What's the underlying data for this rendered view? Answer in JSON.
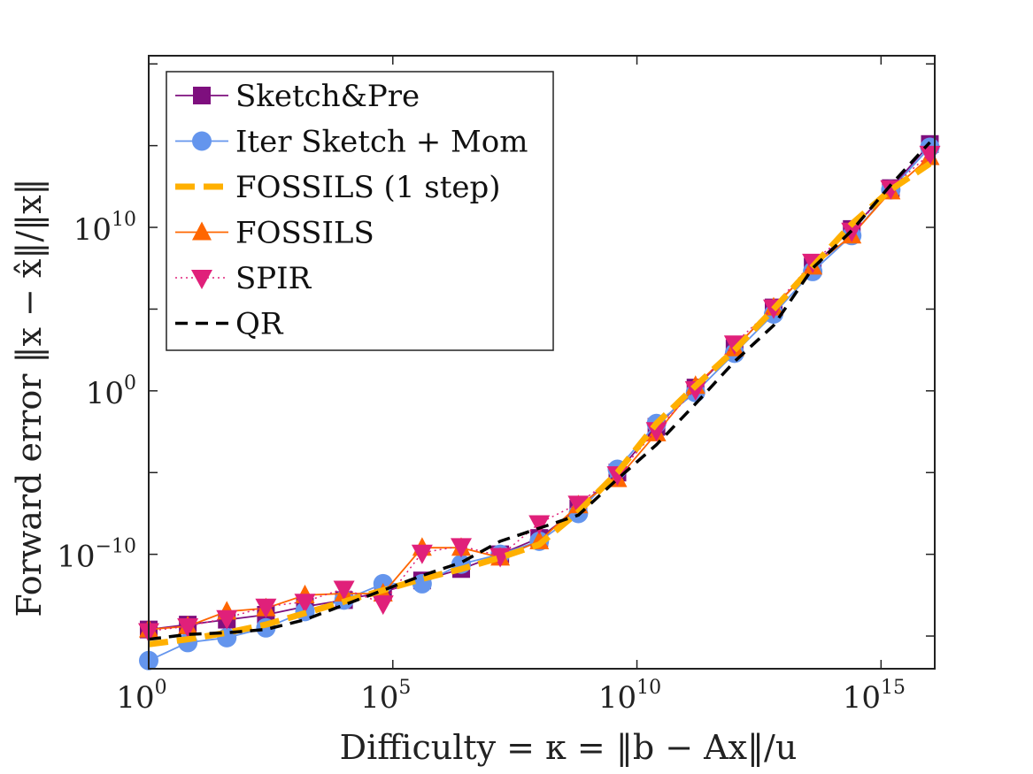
{
  "chart_data": {
    "type": "line",
    "x_scale": "log10",
    "y_scale": "log10",
    "xlabel": "Difficulty = κ = ‖b − Ax‖/u",
    "ylabel": "Forward error ‖x − x̂‖/‖x‖",
    "xlim_exp": [
      0,
      16.1
    ],
    "ylim_exp": [
      -17,
      20.5
    ],
    "x_ticks": [
      {
        "exp": 0,
        "base": "10",
        "sup": "0"
      },
      {
        "exp": 5,
        "base": "10",
        "sup": "5"
      },
      {
        "exp": 10,
        "base": "10",
        "sup": "10"
      },
      {
        "exp": 15,
        "base": "10",
        "sup": "15"
      }
    ],
    "y_ticks": [
      {
        "exp": -10,
        "base": "10",
        "sup": "−10"
      },
      {
        "exp": 0,
        "base": "10",
        "sup": "0"
      },
      {
        "exp": 10,
        "base": "10",
        "sup": "10"
      }
    ],
    "y_minor_ticks": [
      -15,
      -5,
      5,
      15,
      20
    ],
    "legend_position": "top-left",
    "series": [
      {
        "name": "Sketch&Pre",
        "color": "#7e0f7e",
        "marker": "square",
        "line": "solid",
        "x": [
          0,
          0.8,
          1.6,
          2.4,
          3.2,
          4.0,
          4.8,
          5.6,
          6.4,
          7.2,
          8.0,
          8.8,
          9.6,
          10.4,
          11.2,
          12.0,
          12.8,
          13.6,
          14.4,
          15.2,
          16.0
        ],
        "y": [
          -14.6,
          -14.3,
          -14.0,
          -13.7,
          -13.2,
          -12.8,
          -12.3,
          -11.6,
          -10.9,
          -10.0,
          -9.0,
          -7.2,
          -5.0,
          -2.2,
          0.2,
          2.6,
          5.1,
          7.6,
          9.9,
          12.4,
          15.1
        ]
      },
      {
        "name": "Iter Sketch + Mom",
        "color": "#6495ed",
        "marker": "circle",
        "line": "solid",
        "x": [
          0,
          0.8,
          1.6,
          2.4,
          3.2,
          4.0,
          4.8,
          5.6,
          6.4,
          7.2,
          8.0,
          8.8,
          9.6,
          10.4,
          11.2,
          12.0,
          12.8,
          13.6,
          14.4,
          15.2,
          16.0
        ],
        "y": [
          -16.5,
          -15.4,
          -15.1,
          -14.5,
          -13.5,
          -12.8,
          -11.8,
          -11.8,
          -10.6,
          -10.0,
          -9.2,
          -7.5,
          -4.8,
          -2.0,
          -0.1,
          2.3,
          4.7,
          7.3,
          9.5,
          12.3,
          14.9
        ]
      },
      {
        "name": "FOSSILS (1 step)",
        "color": "#ffb000",
        "marker": "none",
        "line": "dashed-thick",
        "x": [
          0,
          0.8,
          1.6,
          2.4,
          3.2,
          4.0,
          4.8,
          5.6,
          6.4,
          7.2,
          8.0,
          8.8,
          9.6,
          10.4,
          11.2,
          12.0,
          12.8,
          13.6,
          14.4,
          15.2,
          16.0
        ],
        "y": [
          -15.5,
          -15.2,
          -14.8,
          -14.3,
          -13.6,
          -12.9,
          -12.2,
          -11.5,
          -10.9,
          -10.2,
          -9.4,
          -7.4,
          -5.0,
          -2.0,
          0.3,
          2.5,
          5.0,
          7.6,
          10.2,
          12.3,
          13.9
        ]
      },
      {
        "name": "FOSSILS",
        "color": "#ff6600",
        "marker": "triangle-up",
        "line": "solid",
        "x": [
          0,
          0.8,
          1.6,
          2.4,
          3.2,
          4.0,
          4.8,
          5.6,
          6.4,
          7.2,
          8.0,
          8.8,
          9.6,
          10.4,
          11.2,
          12.0,
          12.8,
          13.6,
          14.4,
          15.2,
          16.0
        ],
        "y": [
          -14.6,
          -14.4,
          -13.5,
          -13.3,
          -12.5,
          -12.4,
          -12.4,
          -9.6,
          -9.6,
          -10.2,
          -9.2,
          -7.0,
          -5.4,
          -2.6,
          0.3,
          2.6,
          5.1,
          7.6,
          9.5,
          12.2,
          14.3
        ]
      },
      {
        "name": "SPIR",
        "color": "#e0207a",
        "marker": "triangle-down",
        "line": "dotted",
        "x": [
          0,
          0.8,
          1.6,
          2.4,
          3.2,
          4.0,
          4.8,
          5.6,
          6.4,
          7.2,
          8.0,
          8.8,
          9.6,
          10.4,
          11.2,
          12.0,
          12.8,
          13.6,
          14.4,
          15.2,
          16.0
        ],
        "y": [
          -14.7,
          -14.4,
          -13.9,
          -13.2,
          -12.9,
          -12.1,
          -13.0,
          -9.9,
          -9.5,
          -10.1,
          -8.1,
          -6.9,
          -5.1,
          -2.4,
          0.1,
          2.9,
          5.1,
          7.9,
          9.8,
          12.4,
          14.5
        ]
      },
      {
        "name": "QR",
        "color": "#000000",
        "marker": "none",
        "line": "dashed",
        "x": [
          0,
          0.8,
          1.6,
          2.4,
          3.2,
          4.0,
          4.8,
          5.6,
          6.4,
          7.2,
          8.0,
          8.8,
          9.6,
          10.4,
          11.2,
          12.0,
          12.8,
          13.6,
          14.4,
          15.2,
          16.0
        ],
        "y": [
          -15.2,
          -14.9,
          -14.8,
          -14.6,
          -14.0,
          -13.1,
          -12.2,
          -11.3,
          -10.5,
          -9.2,
          -8.4,
          -7.6,
          -5.4,
          -3.3,
          -0.8,
          1.8,
          4.0,
          7.5,
          9.8,
          12.6,
          15.2
        ]
      }
    ]
  }
}
